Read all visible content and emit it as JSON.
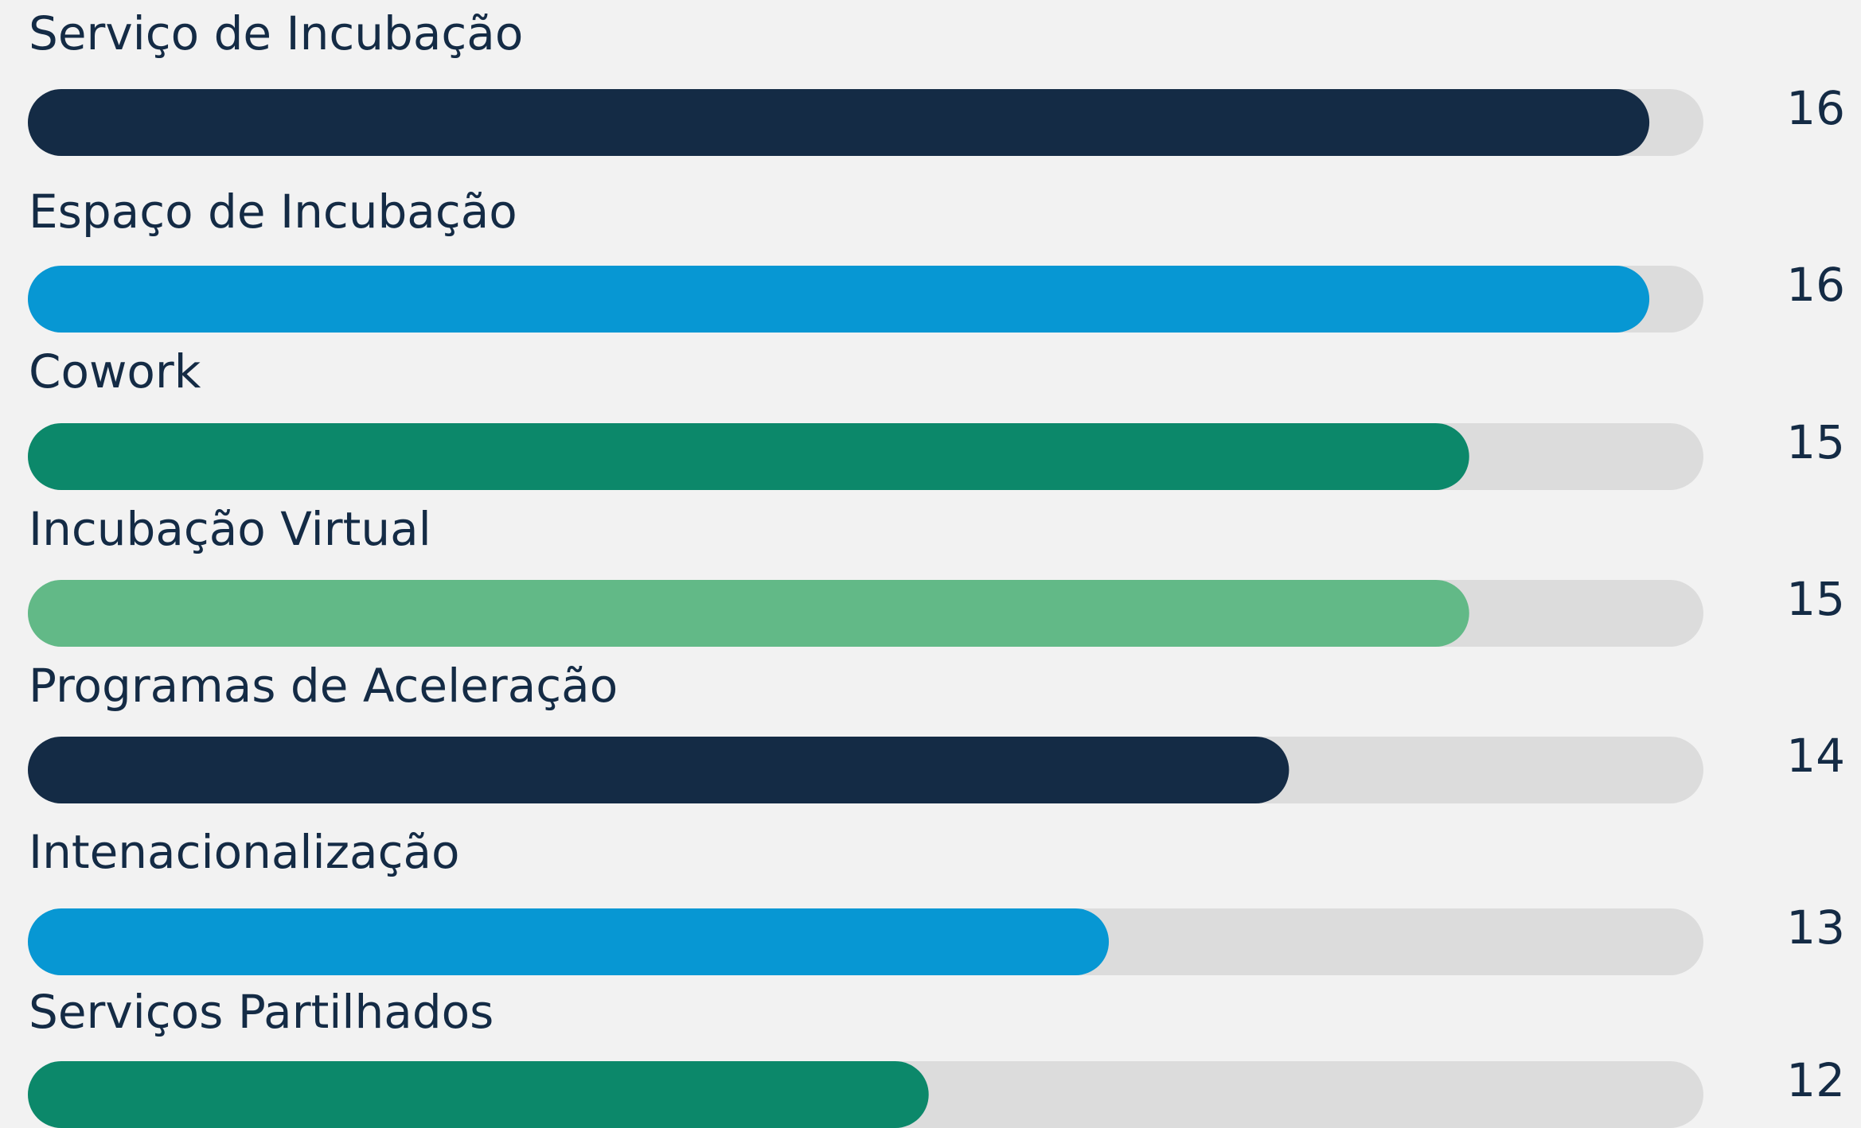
{
  "chart_data": {
    "type": "bar",
    "categories": [
      "Serviço de Incubação",
      "Espaço de Incubação",
      "Cowork",
      "Incubação Virtual",
      "Programas de Aceleração",
      "Intenacionalização",
      "Serviços Partilhados"
    ],
    "values": [
      16,
      16,
      15,
      15,
      14,
      13,
      12
    ],
    "colors": [
      "#142b45",
      "#0797d3",
      "#0c886a",
      "#62b987",
      "#142b45",
      "#0797d3",
      "#0c886a"
    ],
    "xlim": [
      7,
      16.3
    ]
  }
}
